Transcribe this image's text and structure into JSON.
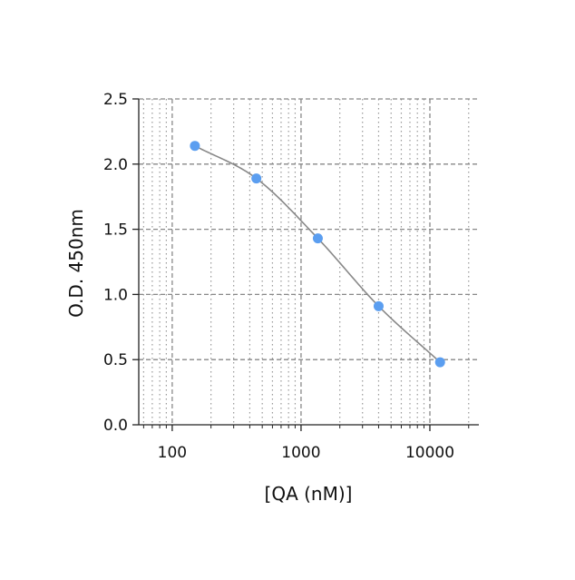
{
  "chart_data": {
    "type": "scatter",
    "title": "",
    "xlabel": "[QA (nM)]",
    "ylabel": "O.D. 450nm",
    "x_scale": "log",
    "xlim": [
      55,
      24000
    ],
    "ylim": [
      0,
      2.5
    ],
    "x_ticks": [
      100,
      1000,
      10000
    ],
    "x_tick_labels": [
      "100",
      "1000",
      "10000"
    ],
    "y_ticks": [
      0,
      0.5,
      1.0,
      1.5,
      2.0,
      2.5
    ],
    "y_tick_labels": [
      "0.0",
      "0.5",
      "1.0",
      "1.5",
      "2.0",
      "2.5"
    ],
    "grid": true,
    "series": [
      {
        "x": [
          150,
          450,
          1350,
          4000,
          12000
        ],
        "y": [
          2.14,
          1.89,
          1.43,
          0.91,
          0.48
        ],
        "color": "#5b9ef0",
        "fit_curve": "sigmoidal",
        "fit_color": "#888888"
      }
    ]
  }
}
